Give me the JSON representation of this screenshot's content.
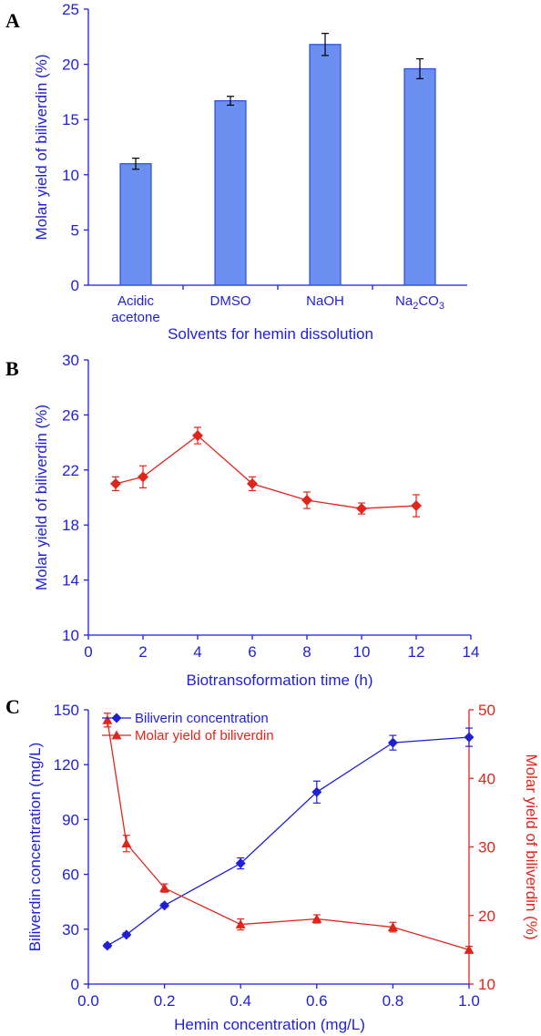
{
  "panels": {
    "a": {
      "label": "A"
    },
    "b": {
      "label": "B"
    },
    "c": {
      "label": "C"
    }
  },
  "colors": {
    "blue": "#1f1fd6",
    "red": "#e0251c",
    "bar_fill": "#6b8ff0",
    "bar_stroke": "#2b4fd8"
  },
  "chart_data": [
    {
      "type": "bar",
      "panel": "A",
      "categories": [
        "Acidic acetone",
        "DMSO",
        "NaOH",
        "Na2CO3"
      ],
      "category_lines": [
        [
          "Acidic",
          "acetone"
        ],
        [
          "DMSO"
        ],
        [
          "NaOH"
        ],
        [
          "Na",
          "2",
          "CO",
          "3"
        ]
      ],
      "values": [
        11.0,
        16.7,
        21.8,
        19.6
      ],
      "errors": [
        0.5,
        0.4,
        1.0,
        0.9
      ],
      "xlabel": "Solvents for hemin dissolution",
      "ylabel": "Molar yield of biliverdin (%)",
      "ylim": [
        0,
        25
      ],
      "yticks": [
        "0",
        "5",
        "10",
        "15",
        "20",
        "25"
      ],
      "grid": false
    },
    {
      "type": "line",
      "panel": "B",
      "x": [
        1,
        2,
        4,
        6,
        8,
        10,
        12
      ],
      "y": [
        21.0,
        21.5,
        24.5,
        21.0,
        19.8,
        19.2,
        19.4
      ],
      "errors": [
        0.5,
        0.8,
        0.6,
        0.5,
        0.6,
        0.4,
        0.8
      ],
      "marker": "diamond",
      "xlabel": "Biotransoformation time (h)",
      "ylabel": "Molar yield of biliverdin (%)",
      "xlim": [
        0,
        14
      ],
      "ylim": [
        10,
        30
      ],
      "xticks": [
        "0",
        "2",
        "4",
        "6",
        "8",
        "10",
        "12",
        "14"
      ],
      "yticks": [
        "10",
        "14",
        "18",
        "22",
        "26",
        "30"
      ],
      "grid": false
    },
    {
      "type": "line",
      "panel": "C",
      "xlabel": "Hemin concentration (mg/L)",
      "ylabel_left": "Biliverdin concentration (mg/L)",
      "ylabel_right": "Molar yield of biliverdin (%)",
      "xlim": [
        0.0,
        1.0
      ],
      "ylim_left": [
        0,
        150
      ],
      "ylim_right": [
        10,
        50
      ],
      "xticks": [
        "0.0",
        "0.2",
        "0.4",
        "0.6",
        "0.8",
        "1.0"
      ],
      "yticks_left": [
        "0",
        "30",
        "60",
        "90",
        "120",
        "150"
      ],
      "yticks_right": [
        "10",
        "20",
        "30",
        "40",
        "50"
      ],
      "legend": "top-left",
      "series": [
        {
          "name": "Biliverin concentration",
          "axis": "left",
          "marker": "diamond",
          "x": [
            0.05,
            0.1,
            0.2,
            0.4,
            0.6,
            0.8,
            1.0
          ],
          "y": [
            21,
            27,
            43,
            66,
            105,
            132,
            135
          ],
          "errors": [
            1,
            1,
            1,
            3,
            6,
            4,
            5
          ]
        },
        {
          "name": "Molar yield of biliverdin",
          "axis": "right",
          "marker": "triangle",
          "x": [
            0.05,
            0.1,
            0.2,
            0.4,
            0.6,
            0.8,
            1.0
          ],
          "y": [
            48.5,
            30.5,
            24.0,
            18.7,
            19.5,
            18.3,
            15.0
          ],
          "errors": [
            1.0,
            1.2,
            0.6,
            0.8,
            0.6,
            0.7,
            0.5
          ]
        }
      ],
      "grid": false
    }
  ]
}
